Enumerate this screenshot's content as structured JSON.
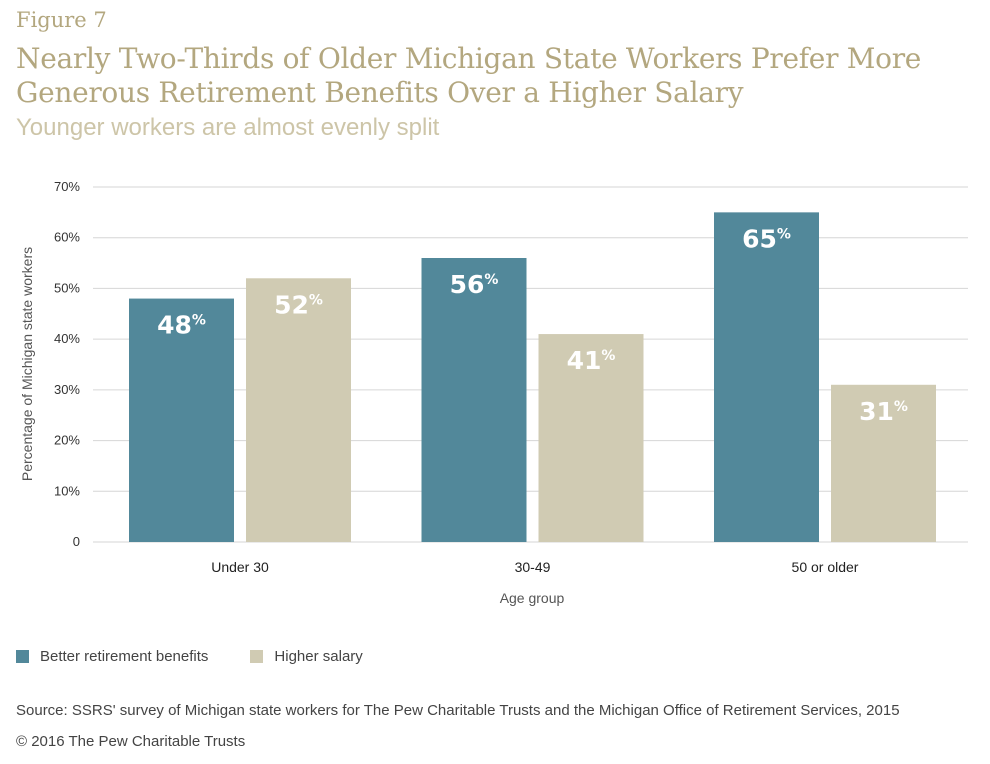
{
  "figure_label": "Figure 7",
  "title": "Nearly Two-Thirds of Older Michigan State Workers Prefer More Generous Retirement Benefits Over a Higher Salary",
  "subtitle": "Younger workers are almost evenly split",
  "source": "Source: SSRS' survey of Michigan state workers for The Pew Charitable Trusts and the Michigan Office of Retirement Services, 2015",
  "copyright": "© 2016 The Pew Charitable Trusts",
  "chart_data": {
    "type": "bar",
    "categories": [
      "Under 30",
      "30-49",
      "50 or older"
    ],
    "series": [
      {
        "name": "Better retirement benefits",
        "values": [
          48,
          56,
          65
        ],
        "color": "#52889a"
      },
      {
        "name": "Higher salary",
        "values": [
          52,
          41,
          31
        ],
        "color": "#d0cbb3"
      }
    ],
    "xlabel": "Age group",
    "ylabel": "Percentage of Michigan state workers",
    "ylim": [
      0,
      70
    ],
    "yticks": [
      "0",
      "10%",
      "20%",
      "30%",
      "40%",
      "50%",
      "60%",
      "70%"
    ],
    "value_suffix": "%",
    "grid": true,
    "legend_position": "bottom-left"
  }
}
